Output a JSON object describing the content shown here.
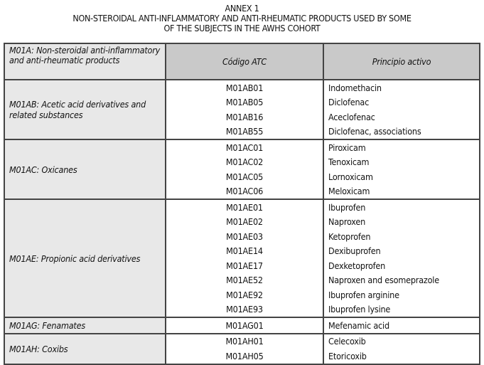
{
  "annex": "ANNEX 1",
  "title_line1": "NON-STEROIDAL ANTI-INFLAMMATORY AND ANTI-RHEUMATIC PRODUCTS USED BY SOME",
  "title_line2": "OF THE SUBJECTS IN THE AWHS COHORT",
  "header": {
    "group": "M01A:  Non-steroidal anti-inflammatory and anti-rheumatic products",
    "code": "Código ATC",
    "name": "Principio activo"
  },
  "groups": [
    {
      "label": "M01AB: Acetic acid derivatives and related substances",
      "rows": [
        [
          "M01AB01",
          "Indomethacin"
        ],
        [
          "M01AB05",
          "Diclofenac"
        ],
        [
          "M01AB16",
          "Aceclofenac"
        ],
        [
          "M01AB55",
          "Diclofenac, associations"
        ]
      ]
    },
    {
      "label": "M01AC: Oxicanes",
      "rows": [
        [
          "M01AC01",
          "Piroxicam"
        ],
        [
          "M01AC02",
          "Tenoxicam"
        ],
        [
          "M01AC05",
          "Lornoxicam"
        ],
        [
          "M01AC06",
          "Meloxicam"
        ]
      ]
    },
    {
      "label": "M01AE: Propionic acid derivatives",
      "rows": [
        [
          "M01AE01",
          "Ibuprofen"
        ],
        [
          "M01AE02",
          "Naproxen"
        ],
        [
          "M01AE03",
          "Ketoprofen"
        ],
        [
          "M01AE14",
          "Dexibuprofen"
        ],
        [
          "M01AE17",
          "Dexketoprofen"
        ],
        [
          "M01AE52",
          "Naproxen and esomeprazole"
        ],
        [
          "M01AE92",
          "Ibuprofen arginine"
        ],
        [
          "M01AE93",
          "Ibuprofen lysine"
        ]
      ]
    },
    {
      "label": "M01AG: Fenamates",
      "rows": [
        [
          "M01AG01",
          "Mefenamic acid"
        ]
      ]
    },
    {
      "label": "M01AH: Coxibs",
      "rows": [
        [
          "M01AH01",
          "Celecoxib"
        ],
        [
          "M01AH05",
          "Etoricoxib"
        ]
      ]
    }
  ]
}
